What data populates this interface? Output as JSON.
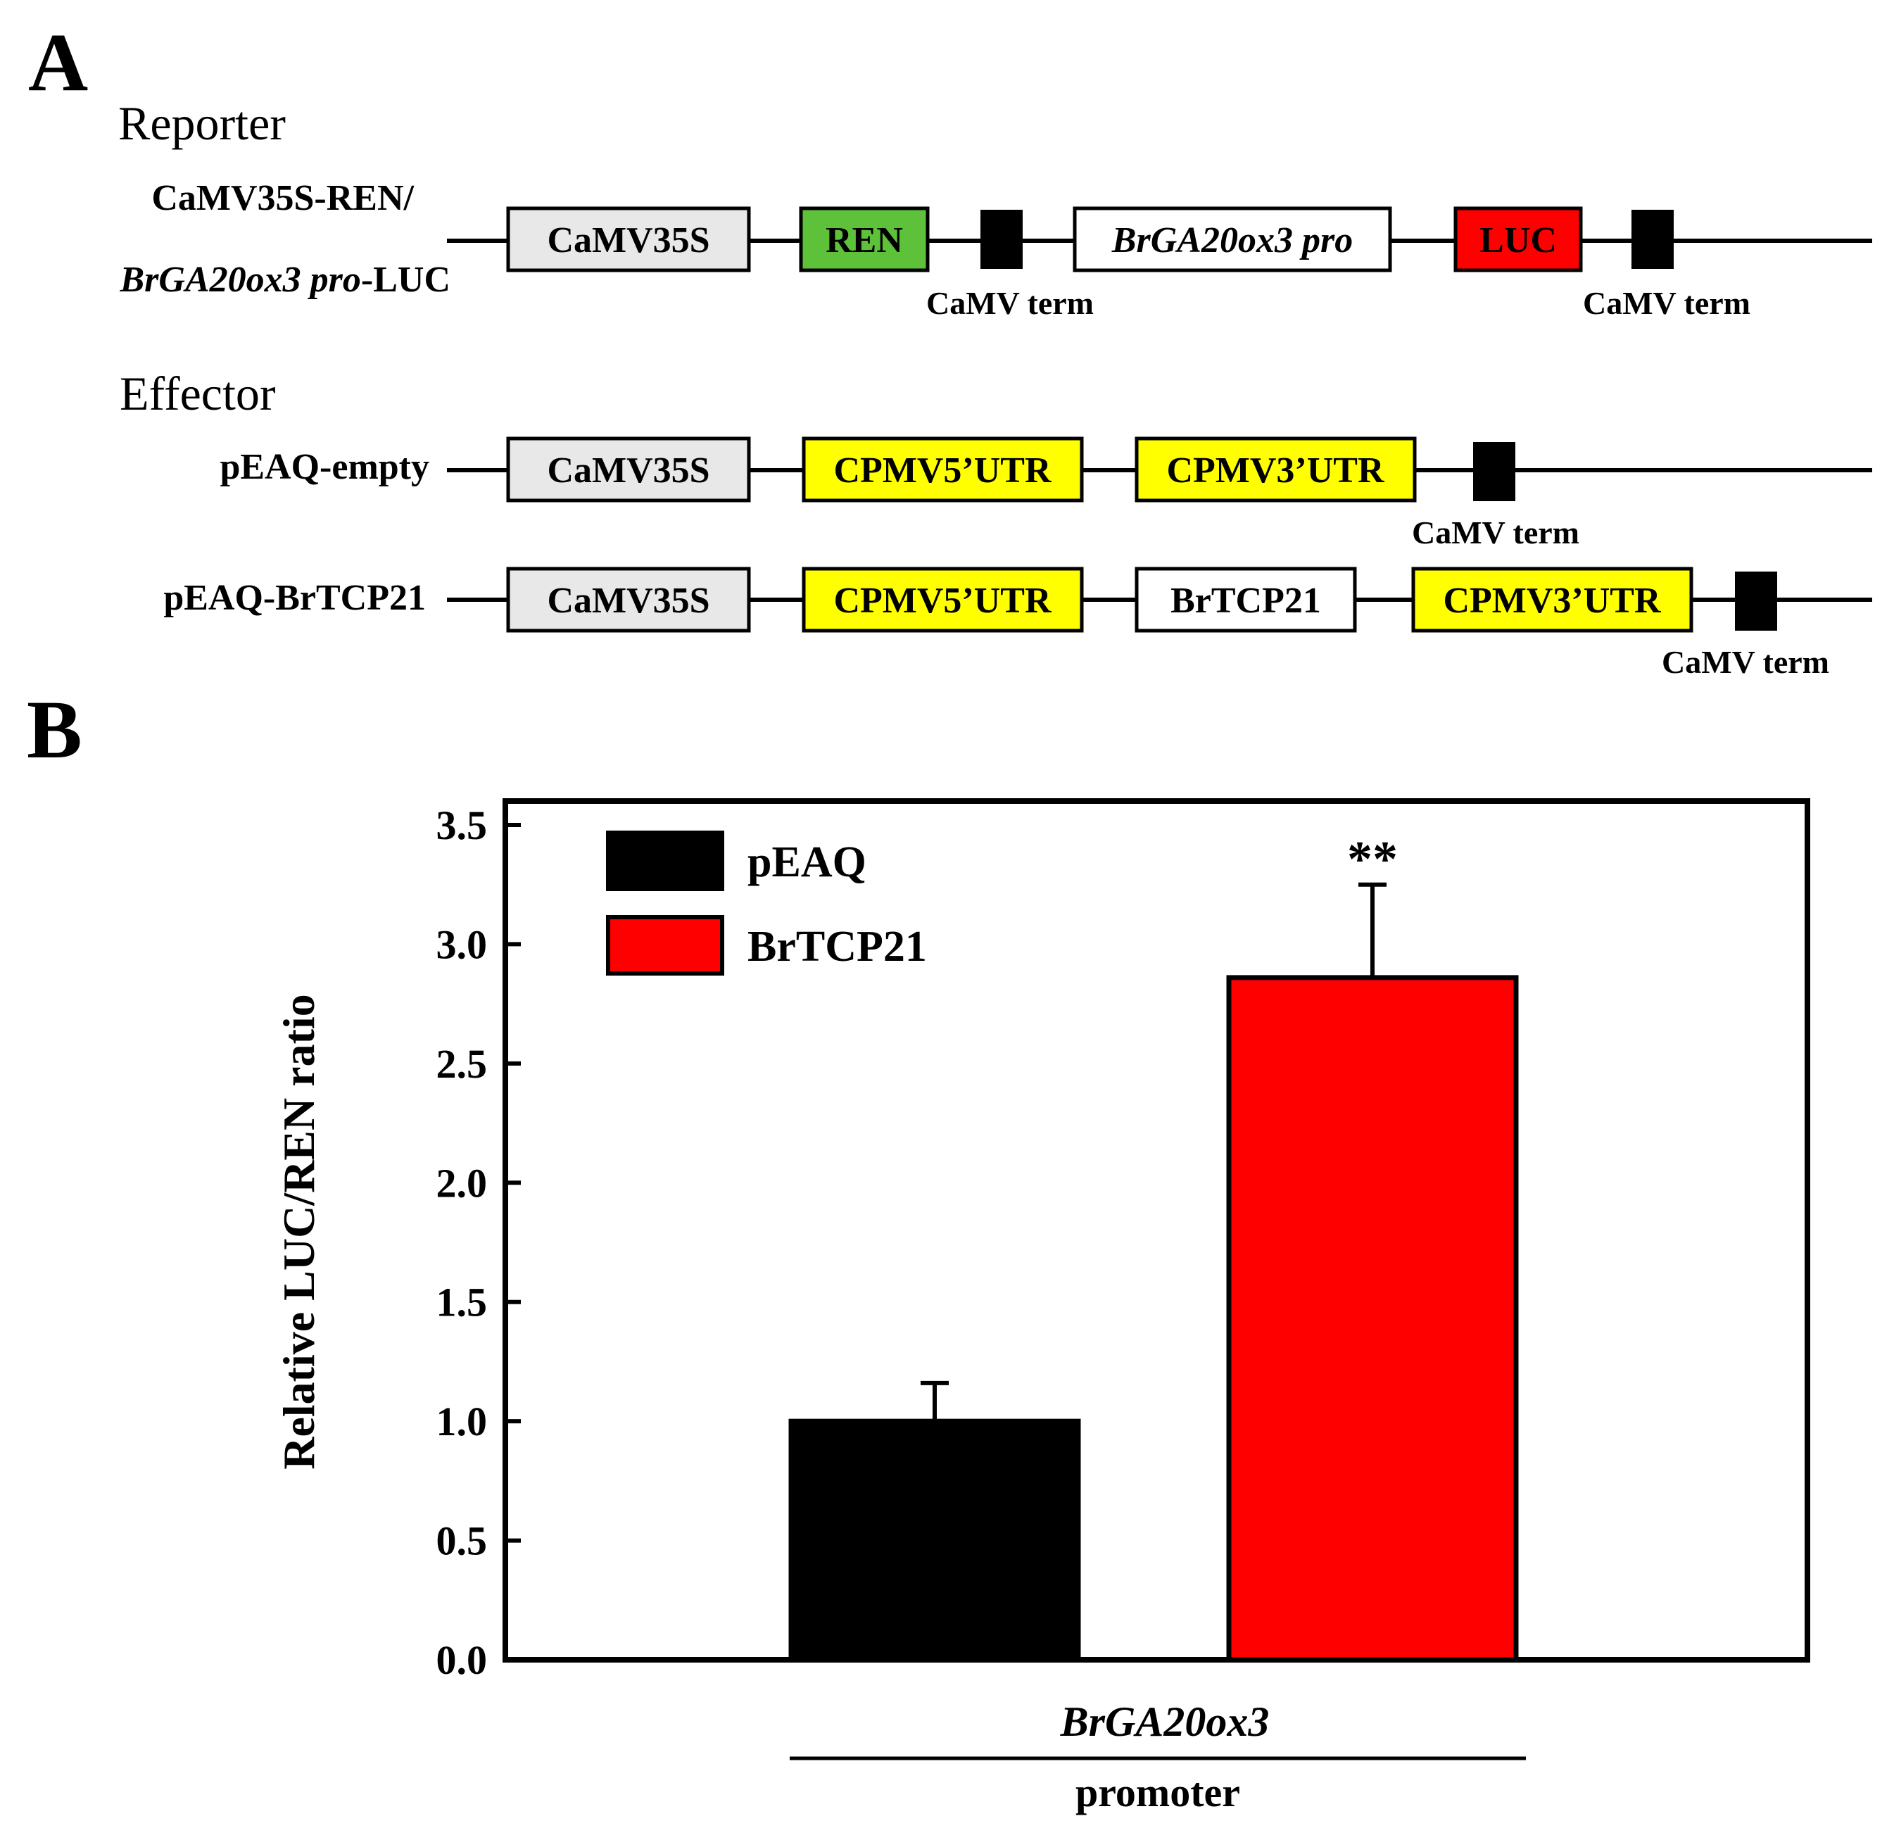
{
  "panel_a": {
    "letter": "A",
    "reporter": {
      "heading": "Reporter",
      "name_line1": "CaMV35S-REN/",
      "name_line2_italic": "BrGA20ox3 pro",
      "name_line2_rest": "-LUC",
      "elements": [
        {
          "label": "CaMV35S",
          "color": "#e8e8e8"
        },
        {
          "label": "REN",
          "color": "#5dc13a"
        },
        {
          "label": "",
          "color": "#000000"
        },
        {
          "label": "BrGA20ox3 pro",
          "color": "#ffffff",
          "italic": true
        },
        {
          "label": "LUC",
          "color": "#ff0000"
        },
        {
          "label": "",
          "color": "#000000"
        }
      ],
      "term_labels": [
        "CaMV term",
        "CaMV term"
      ]
    },
    "effector": {
      "heading": "Effector",
      "constructs": [
        {
          "name": "pEAQ-empty",
          "elements": [
            {
              "label": "CaMV35S",
              "color": "#e8e8e8"
            },
            {
              "label": "CPMV5’UTR",
              "color": "#ffff00"
            },
            {
              "label": "CPMV3’UTR",
              "color": "#ffff00"
            },
            {
              "label": "",
              "color": "#000000"
            }
          ],
          "term_label": "CaMV term"
        },
        {
          "name": "pEAQ-BrTCP21",
          "elements": [
            {
              "label": "CaMV35S",
              "color": "#e8e8e8"
            },
            {
              "label": "CPMV5’UTR",
              "color": "#ffff00"
            },
            {
              "label": "BrTCP21",
              "color": "#ffffff"
            },
            {
              "label": "CPMV3’UTR",
              "color": "#ffff00"
            },
            {
              "label": "",
              "color": "#000000"
            }
          ],
          "term_label": "CaMV term"
        }
      ]
    }
  },
  "panel_b": {
    "letter": "B",
    "chart_data": {
      "type": "bar",
      "ylabel": "Relative LUC/REN ratio",
      "ylim": [
        0,
        3.5
      ],
      "yticks": [
        "0.0",
        "0.5",
        "1.0",
        "1.5",
        "2.0",
        "2.5",
        "3.0",
        "3.5"
      ],
      "ytick_values": [
        0,
        0.5,
        1.0,
        1.5,
        2.0,
        2.5,
        3.0,
        3.5
      ],
      "grid": false,
      "legend_position": "top-left",
      "series": [
        {
          "name": "pEAQ",
          "value": 1.0,
          "error": 0.16,
          "color": "#000000",
          "annotation": ""
        },
        {
          "name": "BrTCP21",
          "value": 2.86,
          "error": 0.39,
          "color": "#ff0000",
          "annotation": "**"
        }
      ],
      "group_label_italic": "BrGA20ox3",
      "group_label_sub": "promoter"
    }
  }
}
